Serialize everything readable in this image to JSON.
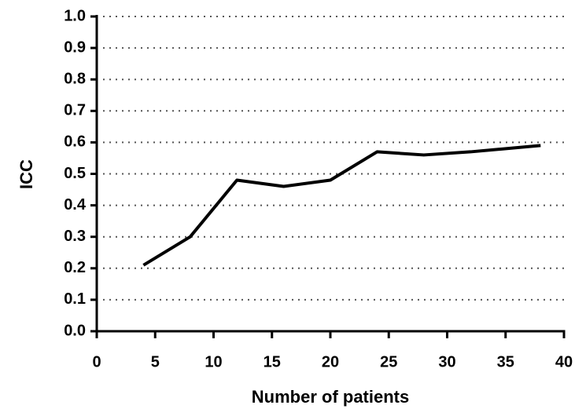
{
  "chart_data": {
    "type": "line",
    "x_label": "Number of patients",
    "y_label": "ICC",
    "x": [
      4,
      8,
      12,
      16,
      20,
      24,
      28,
      32,
      38
    ],
    "series": [
      {
        "color": "#000000",
        "values": [
          0.21,
          0.3,
          0.48,
          0.46,
          0.48,
          0.57,
          0.56,
          0.57,
          0.59
        ]
      }
    ],
    "xlim": [
      0,
      40
    ],
    "xticks": [
      0,
      5,
      10,
      15,
      20,
      25,
      30,
      35,
      40
    ],
    "ylim": [
      0,
      1
    ],
    "yticks": [
      {
        "value": 0,
        "label": "0.0"
      },
      0.1,
      0.2,
      0.3,
      0.4,
      0.5,
      0.6,
      0.7,
      0.8,
      0.9,
      {
        "value": 1,
        "label": "1.0"
      }
    ],
    "grid": true
  }
}
